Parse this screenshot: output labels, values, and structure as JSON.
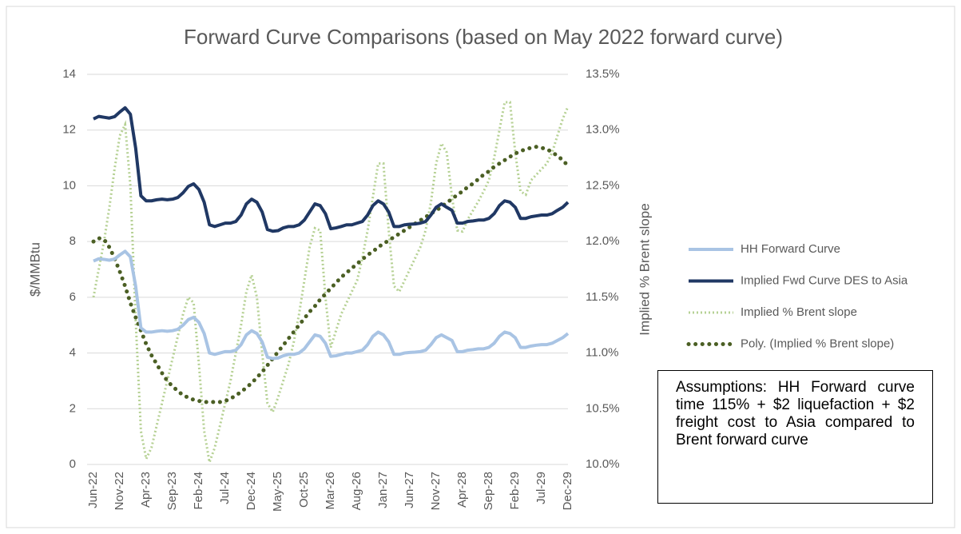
{
  "chart_data": {
    "type": "line",
    "title": "Forward Curve Comparisons (based on May 2022 forward curve)",
    "ylabel": "$/MMBtu",
    "y2label": "Implied % Brent slope",
    "annotation": "Assumptions: HH Forward curve time 115% + $2 liquefaction + $2 freight cost to Asia compared to Brent forward curve",
    "legend": "right",
    "categories": [
      "Jun-22",
      null,
      null,
      null,
      null,
      "Nov-22",
      null,
      null,
      null,
      null,
      "Apr-23",
      null,
      null,
      null,
      null,
      "Sep-23",
      null,
      null,
      null,
      null,
      "Feb-24",
      null,
      null,
      null,
      null,
      "Jul-24",
      null,
      null,
      null,
      null,
      "Dec-24",
      null,
      null,
      null,
      null,
      "May-25",
      null,
      null,
      null,
      null,
      "Oct-25",
      null,
      null,
      null,
      null,
      "Mar-26",
      null,
      null,
      null,
      null,
      "Aug-26",
      null,
      null,
      null,
      null,
      "Jan-27",
      null,
      null,
      null,
      null,
      "Jun-27",
      null,
      null,
      null,
      null,
      "Nov-27",
      null,
      null,
      null,
      null,
      "Apr-28",
      null,
      null,
      null,
      null,
      "Sep-28",
      null,
      null,
      null,
      null,
      "Feb-29",
      null,
      null,
      null,
      null,
      "Jul-29",
      null,
      null,
      null,
      null,
      "Dec-29"
    ],
    "ylim": [
      0,
      14
    ],
    "yticks": [
      0,
      2,
      4,
      6,
      8,
      10,
      12,
      14
    ],
    "y2lim": [
      10,
      13.5
    ],
    "y2ticks": [
      {
        "value": 10,
        "label": "10.0%"
      },
      {
        "value": 10.5,
        "label": "10.5%"
      },
      {
        "value": 11,
        "label": "11.0%"
      },
      {
        "value": 11.5,
        "label": "11.5%"
      },
      {
        "value": 12,
        "label": "12.0%"
      },
      {
        "value": 12.5,
        "label": "12.5%"
      },
      {
        "value": 13,
        "label": "13.0%"
      },
      {
        "value": 13.5,
        "label": "13.5%"
      }
    ],
    "series": [
      {
        "name": "HH Forward Curve",
        "color": "#a9c4e4",
        "style": "solid",
        "values": [
          7.3,
          7.38,
          7.36,
          7.33,
          7.37,
          7.52,
          7.65,
          7.45,
          6.4,
          4.9,
          4.75,
          4.75,
          4.78,
          4.8,
          4.78,
          4.8,
          4.85,
          5.0,
          5.2,
          5.28,
          5.1,
          4.7,
          4.0,
          3.95,
          4.0,
          4.05,
          4.05,
          4.1,
          4.3,
          4.65,
          4.8,
          4.7,
          4.4,
          3.85,
          3.8,
          3.82,
          3.9,
          3.95,
          3.95,
          4.0,
          4.15,
          4.4,
          4.65,
          4.6,
          4.35,
          3.88,
          3.9,
          3.95,
          4.0,
          4.0,
          4.05,
          4.1,
          4.3,
          4.6,
          4.75,
          4.65,
          4.4,
          3.95,
          3.95,
          4.0,
          4.02,
          4.03,
          4.05,
          4.1,
          4.3,
          4.55,
          4.65,
          4.55,
          4.45,
          4.05,
          4.05,
          4.1,
          4.12,
          4.15,
          4.15,
          4.2,
          4.35,
          4.6,
          4.75,
          4.7,
          4.55,
          4.2,
          4.2,
          4.25,
          4.28,
          4.3,
          4.3,
          4.35,
          4.45,
          4.55,
          4.7
        ]
      },
      {
        "name": "Implied Fwd Curve DES to Asia",
        "color": "#203864",
        "style": "solid",
        "values": [
          12.4,
          12.49,
          12.46,
          12.43,
          12.48,
          12.65,
          12.8,
          12.57,
          11.36,
          9.64,
          9.46,
          9.46,
          9.5,
          9.52,
          9.5,
          9.52,
          9.58,
          9.75,
          9.98,
          10.07,
          9.87,
          9.41,
          8.6,
          8.54,
          8.6,
          8.66,
          8.66,
          8.72,
          8.95,
          9.35,
          9.52,
          9.41,
          9.06,
          8.43,
          8.37,
          8.39,
          8.49,
          8.54,
          8.54,
          8.6,
          8.77,
          9.06,
          9.35,
          9.29,
          9.0,
          8.46,
          8.49,
          8.54,
          8.6,
          8.6,
          8.66,
          8.72,
          8.95,
          9.29,
          9.46,
          9.35,
          9.06,
          8.54,
          8.54,
          8.6,
          8.62,
          8.63,
          8.66,
          8.72,
          8.95,
          9.23,
          9.35,
          9.23,
          9.12,
          8.66,
          8.66,
          8.72,
          8.74,
          8.77,
          8.77,
          8.83,
          9.0,
          9.29,
          9.46,
          9.41,
          9.23,
          8.83,
          8.83,
          8.89,
          8.92,
          8.95,
          8.95,
          9.0,
          9.12,
          9.23,
          9.41
        ]
      },
      {
        "name": "Implied % Brent slope",
        "color": "#b6d194",
        "style": "dotted",
        "axis": "y2",
        "values": [
          11.5,
          11.75,
          12.0,
          12.3,
          12.65,
          12.95,
          13.05,
          12.5,
          11.3,
          10.3,
          10.05,
          10.15,
          10.35,
          10.55,
          10.75,
          10.95,
          11.15,
          11.35,
          11.5,
          11.45,
          10.9,
          10.3,
          10.02,
          10.15,
          10.35,
          10.55,
          10.75,
          11.0,
          11.25,
          11.55,
          11.7,
          11.5,
          11.0,
          10.55,
          10.47,
          10.6,
          10.75,
          10.9,
          11.1,
          11.35,
          11.65,
          11.95,
          12.12,
          12.1,
          11.5,
          11.05,
          11.2,
          11.35,
          11.45,
          11.55,
          11.65,
          11.85,
          12.1,
          12.4,
          12.7,
          12.7,
          12.1,
          11.6,
          11.55,
          11.65,
          11.75,
          11.85,
          11.95,
          12.1,
          12.35,
          12.7,
          12.88,
          12.8,
          12.4,
          12.1,
          12.09,
          12.2,
          12.28,
          12.36,
          12.45,
          12.55,
          12.75,
          13.0,
          13.25,
          13.25,
          12.8,
          12.45,
          12.42,
          12.55,
          12.6,
          12.65,
          12.7,
          12.8,
          12.95,
          13.1,
          13.21
        ]
      },
      {
        "name": "Poly. (Implied % Brent slope)",
        "color": "#4b5f24",
        "style": "dots",
        "axis": "y2",
        "values": [
          12.0,
          12.03,
          12.02,
          11.95,
          11.85,
          11.73,
          11.6,
          11.45,
          11.32,
          11.2,
          11.08,
          10.98,
          10.9,
          10.82,
          10.75,
          10.7,
          10.66,
          10.62,
          10.6,
          10.58,
          10.57,
          10.56,
          10.56,
          10.56,
          10.56,
          10.57,
          10.59,
          10.62,
          10.65,
          10.69,
          10.73,
          10.78,
          10.83,
          10.89,
          10.95,
          11.01,
          11.07,
          11.13,
          11.19,
          11.25,
          11.31,
          11.37,
          11.42,
          11.48,
          11.53,
          11.58,
          11.63,
          11.68,
          11.72,
          11.76,
          11.8,
          11.84,
          11.88,
          11.91,
          11.95,
          11.98,
          12.01,
          12.04,
          12.07,
          12.1,
          12.13,
          12.16,
          12.19,
          12.22,
          12.25,
          12.28,
          12.31,
          12.35,
          12.38,
          12.42,
          12.45,
          12.49,
          12.52,
          12.56,
          12.6,
          12.63,
          12.67,
          12.7,
          12.73,
          12.76,
          12.79,
          12.81,
          12.83,
          12.84,
          12.85,
          12.84,
          12.83,
          12.8,
          12.77,
          12.73,
          12.68
        ]
      }
    ]
  }
}
